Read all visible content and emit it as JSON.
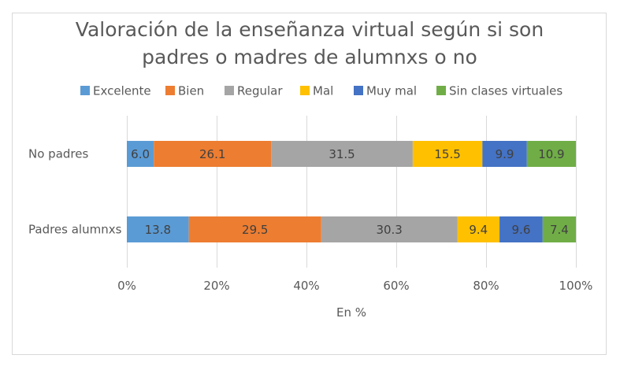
{
  "chart_data": {
    "type": "bar",
    "orientation": "horizontal",
    "stacked": "percent",
    "title": [
      "Valoración de la enseñanza virtual según si son",
      "padres o madres de alumnxs o no"
    ],
    "xlabel": "En %",
    "ylabel": "",
    "xlim": [
      0,
      100
    ],
    "x_ticks": [
      "0%",
      "20%",
      "40%",
      "60%",
      "80%",
      "100%"
    ],
    "grid": true,
    "legend_position": "top",
    "categories": [
      "No padres",
      "Padres alumnxs"
    ],
    "series": [
      {
        "name": "Excelente",
        "color": "#5B9BD5",
        "values": [
          6.0,
          13.8
        ],
        "labels": [
          "6.0",
          "13.8"
        ]
      },
      {
        "name": "Bien",
        "color": "#ED7D31",
        "values": [
          26.1,
          29.5
        ],
        "labels": [
          "26.1",
          "29.5"
        ]
      },
      {
        "name": "Regular",
        "color": "#A5A5A5",
        "values": [
          31.5,
          30.3
        ],
        "labels": [
          "31.5",
          "30.3"
        ]
      },
      {
        "name": "Mal",
        "color": "#FFC000",
        "values": [
          15.5,
          9.4
        ],
        "labels": [
          "15.5",
          "9.4"
        ]
      },
      {
        "name": "Muy mal",
        "color": "#4472C4",
        "values": [
          9.9,
          9.6
        ],
        "labels": [
          "9.9",
          "9.6"
        ]
      },
      {
        "name": "Sin clases virtuales",
        "color": "#70AD47",
        "values": [
          10.9,
          7.4
        ],
        "labels": [
          "10.9",
          "7.4"
        ]
      }
    ]
  }
}
